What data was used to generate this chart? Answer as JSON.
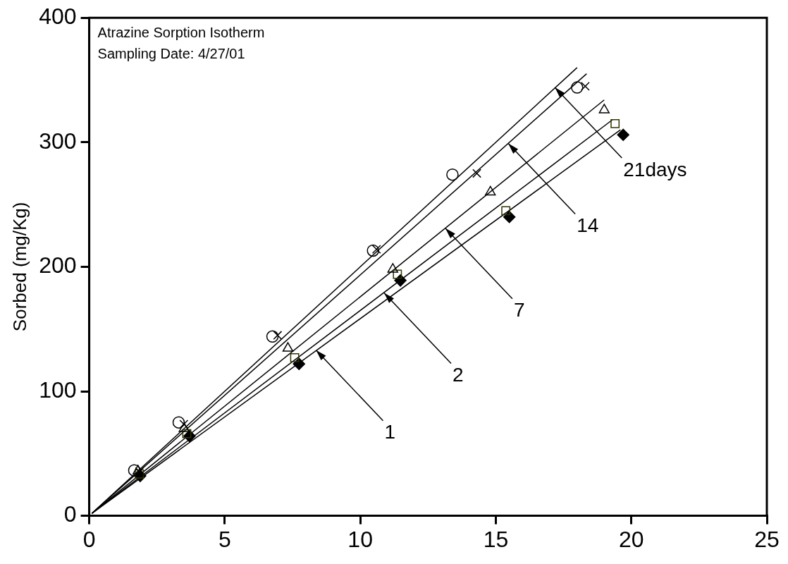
{
  "chart_data": {
    "type": "scatter",
    "title": "Atrazine Sorption Isotherm",
    "subtitle": "Sampling Date: 4/27/01",
    "ylabel": "Sorbed (mg/Kg)",
    "xlim": [
      0,
      25
    ],
    "xticks": [
      0,
      5,
      10,
      15,
      20,
      25
    ],
    "ylim": [
      0,
      400
    ],
    "yticks": [
      0,
      100,
      200,
      300,
      400
    ],
    "grid": false,
    "legend": false,
    "series": [
      {
        "type": "scatter",
        "marker": "circle",
        "color": "#000000",
        "x": [
          1.66,
          3.3,
          6.76,
          10.47,
          13.4,
          18.0
        ],
        "values": [
          36.5,
          75,
          144,
          213,
          274,
          344
        ]
      },
      {
        "type": "scatter",
        "marker": "cross",
        "color": "#000000",
        "x": [
          1.85,
          3.49,
          6.95,
          10.6,
          14.3,
          18.3
        ],
        "values": [
          35.4,
          73.6,
          145,
          214,
          275,
          345
        ]
      },
      {
        "type": "scatter",
        "marker": "triangle",
        "color": "#000000",
        "x": [
          1.8,
          3.5,
          7.33,
          11.2,
          14.8,
          19.0
        ],
        "values": [
          36,
          70,
          134.5,
          198,
          260,
          326
        ]
      },
      {
        "type": "scatter",
        "marker": "square",
        "color": "#333300",
        "x": [
          1.85,
          3.6,
          7.58,
          11.37,
          15.37,
          19.4
        ],
        "values": [
          33.6,
          66,
          127,
          194,
          245,
          315
        ]
      },
      {
        "type": "scatter",
        "marker": "diamond",
        "color": "#000000",
        "x": [
          1.88,
          3.7,
          7.74,
          11.48,
          15.5,
          19.7
        ],
        "values": [
          32,
          64,
          122,
          189,
          240,
          306
        ]
      },
      {
        "type": "line",
        "marker": "none",
        "color": "#000000",
        "x": [
          0.1,
          18.0
        ],
        "values": [
          2,
          360
        ]
      },
      {
        "type": "line",
        "marker": "none",
        "color": "#000000",
        "x": [
          0.1,
          18.35
        ],
        "values": [
          2,
          355
        ]
      },
      {
        "type": "line",
        "marker": "none",
        "color": "#000000",
        "x": [
          0.1,
          19.0
        ],
        "values": [
          2,
          334
        ]
      },
      {
        "type": "line",
        "marker": "none",
        "color": "#000000",
        "x": [
          0.1,
          19.3
        ],
        "values": [
          2,
          318
        ]
      },
      {
        "type": "line",
        "marker": "none",
        "color": "#000000",
        "x": [
          0.1,
          19.6
        ],
        "values": [
          2,
          310
        ]
      }
    ],
    "annotations": [
      {
        "text": "1",
        "x": 8.37,
        "y": 133
      },
      {
        "text": "2",
        "x": 10.88,
        "y": 179
      },
      {
        "text": "7",
        "x": 13.14,
        "y": 231
      },
      {
        "text": "14",
        "x": 15.46,
        "y": 299
      },
      {
        "text": "21days",
        "x": 17.18,
        "y": 344
      }
    ]
  }
}
